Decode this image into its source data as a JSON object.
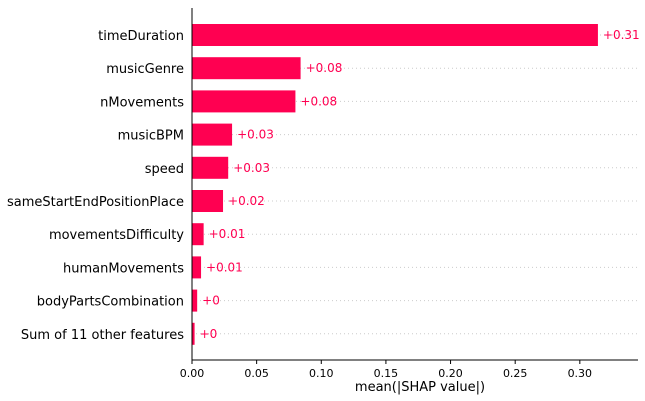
{
  "chart_data": {
    "type": "bar",
    "orientation": "horizontal",
    "categories": [
      "timeDuration",
      "musicGenre",
      "nMovements",
      "musicBPM",
      "speed",
      "sameStartEndPositionPlace",
      "movementsDifficulty",
      "humanMovements",
      "bodyPartsCombination",
      "Sum of 11 other features"
    ],
    "values": [
      0.314,
      0.084,
      0.08,
      0.031,
      0.028,
      0.024,
      0.009,
      0.007,
      0.004,
      0.002
    ],
    "value_labels": [
      "+0.31",
      "+0.08",
      "+0.08",
      "+0.03",
      "+0.03",
      "+0.02",
      "+0.01",
      "+0.01",
      "+0",
      "+0"
    ],
    "xlabel": "mean(|SHAP value|)",
    "xlim": [
      0.0,
      0.345
    ],
    "xticks": [
      "0.00",
      "0.05",
      "0.10",
      "0.15",
      "0.20",
      "0.25",
      "0.30"
    ],
    "grid": "horizontal dotted per category",
    "bar_color": "#ff0051",
    "label_color": "#ff0051"
  }
}
